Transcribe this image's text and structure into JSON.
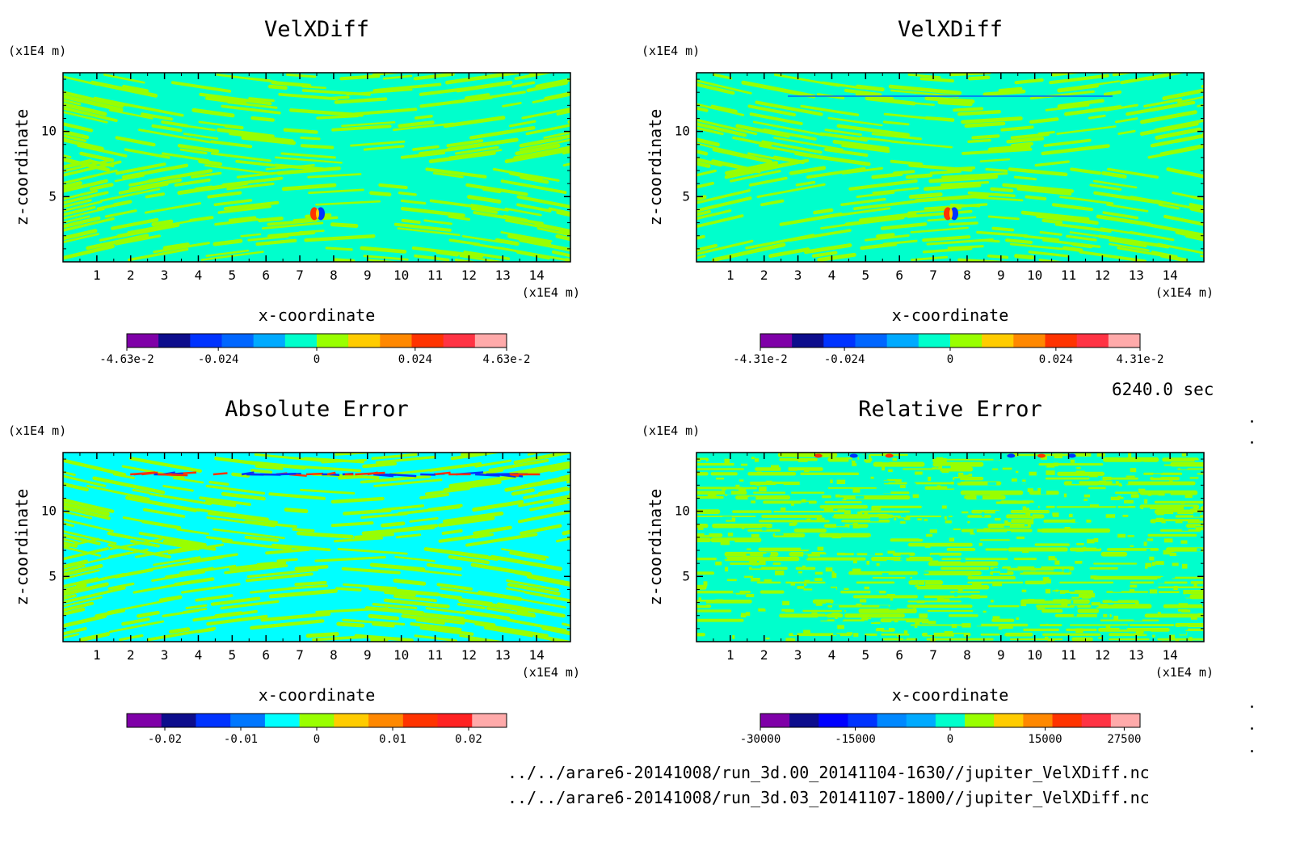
{
  "chart_data": [
    {
      "type": "heatmap",
      "title": "VelXDiff",
      "xlabel": "x-coordinate",
      "ylabel": "z-coordinate",
      "x_unit": "(x1E4 m)",
      "y_unit": "(x1E4 m)",
      "xlim": [
        0,
        15
      ],
      "ylim": [
        0,
        14.5
      ],
      "x_ticks": [
        "1",
        "2",
        "3",
        "4",
        "5",
        "6",
        "7",
        "8",
        "9",
        "10",
        "11",
        "12",
        "13",
        "14"
      ],
      "y_ticks": [
        "5",
        "10"
      ],
      "colorbar_ticks": [
        "-4.63e-2",
        "-0.024",
        "0",
        "0.024",
        "4.63e-2"
      ],
      "colorbar_range": [
        -0.0463,
        0.0463
      ],
      "colors": [
        "#7f00a8",
        "#0d0d8c",
        "#0033ff",
        "#0066ff",
        "#00aaff",
        "#00ffcc",
        "#99ff00",
        "#ffcc00",
        "#ff8800",
        "#ff3300",
        "#ff3344",
        "#ffaaaa"
      ]
    },
    {
      "type": "heatmap",
      "title": "VelXDiff",
      "xlabel": "x-coordinate",
      "ylabel": "z-coordinate",
      "x_unit": "(x1E4 m)",
      "y_unit": "(x1E4 m)",
      "xlim": [
        0,
        15
      ],
      "ylim": [
        0,
        14.5
      ],
      "x_ticks": [
        "1",
        "2",
        "3",
        "4",
        "5",
        "6",
        "7",
        "8",
        "9",
        "10",
        "11",
        "12",
        "13",
        "14"
      ],
      "y_ticks": [
        "5",
        "10"
      ],
      "colorbar_ticks": [
        "-4.31e-2",
        "-0.024",
        "0",
        "0.024",
        "4.31e-2"
      ],
      "colorbar_range": [
        -0.0431,
        0.0431
      ],
      "colors": [
        "#7f00a8",
        "#0d0d8c",
        "#0033ff",
        "#0066ff",
        "#00aaff",
        "#00ffcc",
        "#99ff00",
        "#ffcc00",
        "#ff8800",
        "#ff3300",
        "#ff3344",
        "#ffaaaa"
      ]
    },
    {
      "type": "heatmap",
      "title": "Absolute Error",
      "xlabel": "x-coordinate",
      "ylabel": "z-coordinate",
      "x_unit": "(x1E4 m)",
      "y_unit": "(x1E4 m)",
      "xlim": [
        0,
        15
      ],
      "ylim": [
        0,
        14.5
      ],
      "x_ticks": [
        "1",
        "2",
        "3",
        "4",
        "5",
        "6",
        "7",
        "8",
        "9",
        "10",
        "11",
        "12",
        "13",
        "14"
      ],
      "y_ticks": [
        "5",
        "10"
      ],
      "colorbar_ticks": [
        "-0.02",
        "-0.01",
        "0",
        "0.01",
        "0.02"
      ],
      "colorbar_range": [
        -0.025,
        0.025
      ],
      "colors": [
        "#7f00a8",
        "#0d0d8c",
        "#0033ff",
        "#0077ff",
        "#00ffff",
        "#99ff00",
        "#ffcc00",
        "#ff8800",
        "#ff3300",
        "#ff2222",
        "#ffaaaa"
      ]
    },
    {
      "type": "heatmap",
      "title": "Relative Error",
      "xlabel": "x-coordinate",
      "ylabel": "z-coordinate",
      "x_unit": "(x1E4 m)",
      "y_unit": "(x1E4 m)",
      "xlim": [
        0,
        15
      ],
      "ylim": [
        0,
        14.5
      ],
      "x_ticks": [
        "1",
        "2",
        "3",
        "4",
        "5",
        "6",
        "7",
        "8",
        "9",
        "10",
        "11",
        "12",
        "13",
        "14"
      ],
      "y_ticks": [
        "5",
        "10"
      ],
      "colorbar_ticks": [
        "-30000",
        "-15000",
        "0",
        "15000",
        "27500"
      ],
      "colorbar_range": [
        -30000,
        30000
      ],
      "colors": [
        "#7f00a8",
        "#0d0d8c",
        "#0000ff",
        "#0033ff",
        "#0088ff",
        "#00aaff",
        "#00ffcc",
        "#99ff00",
        "#ffcc00",
        "#ff8800",
        "#ff3300",
        "#ff3344",
        "#ffaaaa"
      ]
    }
  ],
  "time_label": "6240.0 sec",
  "files": [
    "../../arare6-20141008/run_3d.00_20141104-1630//jupiter_VelXDiff.nc",
    "../../arare6-20141008/run_3d.03_20141107-1800//jupiter_VelXDiff.nc"
  ],
  "pattern_colors": {
    "green": "#99ff00",
    "teal": "#00ffcc",
    "cyan": "#00ffff"
  }
}
